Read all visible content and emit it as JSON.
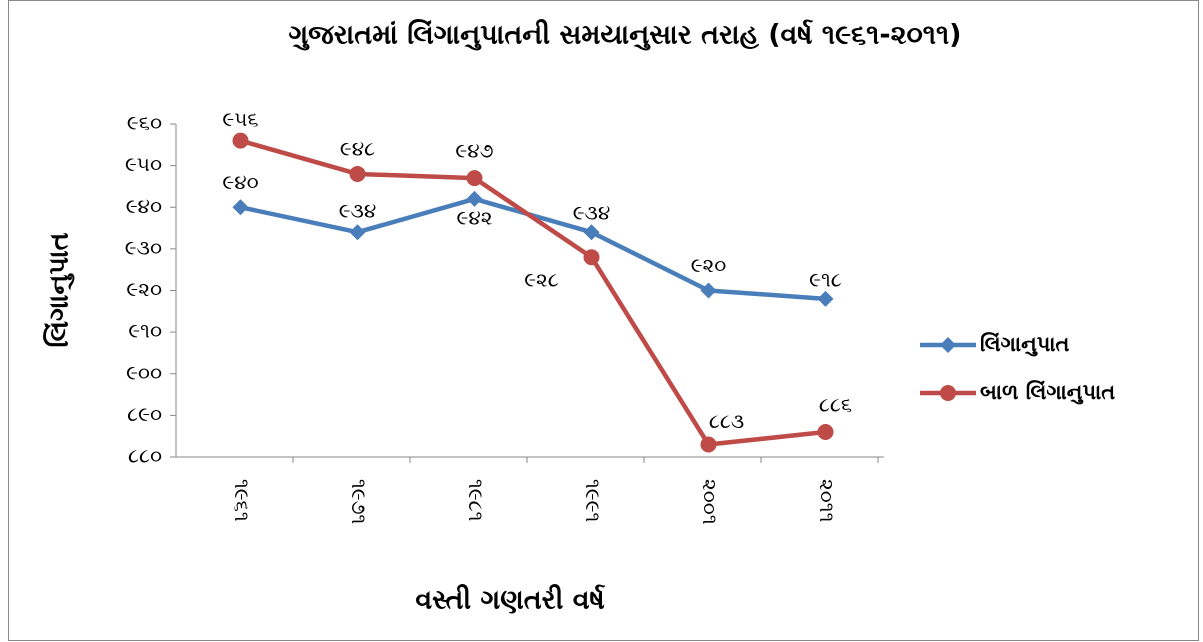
{
  "chart_data": {
    "type": "line",
    "title": "ગુજરાતમાં લિંગાનુપાતની સમયાનુસાર તરાહ (વર્ષ ૧૯૬૧-૨૦૧૧)",
    "x_label": "વસ્તી ગણતરી વર્ષ",
    "y_label": "લિંગાનુપાત",
    "categories": [
      "૧૯૬૧",
      "૧૯૭૧",
      "૧૯૮૧",
      "૧૯૯૧",
      "૨૦૦૧",
      "૨૦૧૧"
    ],
    "series": [
      {
        "name": "લિંગાનુપાત",
        "color": "#4a7ebb",
        "marker": "diamond",
        "values": [
          940,
          934,
          942,
          934,
          920,
          918
        ],
        "value_labels": [
          "૯૪૦",
          "૯૩૪",
          "૯૪૨",
          "૯૩૪",
          "૯૨૦",
          "૯૧૮"
        ]
      },
      {
        "name": "બાળ લિંગાનુપાત",
        "color": "#be4b48",
        "marker": "circle",
        "values": [
          956,
          948,
          947,
          928,
          883,
          886
        ],
        "value_labels": [
          "૯૫૬",
          "૯૪૮",
          "૯૪૭",
          "૯૨૮",
          "૮૮૩",
          "૮૮૬"
        ]
      }
    ],
    "ylim": [
      880,
      960
    ],
    "yticks": [
      {
        "value": 880,
        "label": "૮૮૦"
      },
      {
        "value": 890,
        "label": "૮૯૦"
      },
      {
        "value": 900,
        "label": "૯૦૦"
      },
      {
        "value": 910,
        "label": "૯૧૦"
      },
      {
        "value": 920,
        "label": "૯૨૦"
      },
      {
        "value": 930,
        "label": "૯૩૦"
      },
      {
        "value": 940,
        "label": "૯૪૦"
      },
      {
        "value": 950,
        "label": "૯૫૦"
      },
      {
        "value": 960,
        "label": "૯૬૦"
      }
    ],
    "grid": false,
    "legend": "right"
  }
}
